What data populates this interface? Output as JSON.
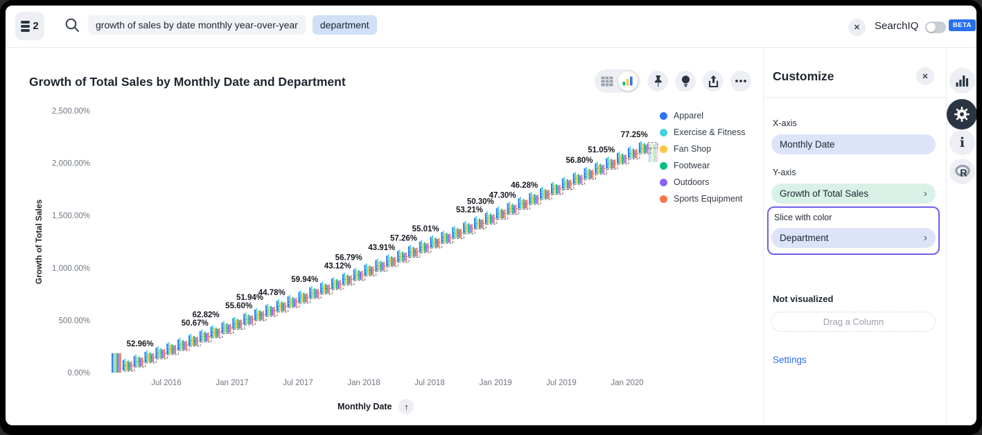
{
  "header": {
    "datasource_count": "2",
    "search": {
      "query_token": "growth of sales by date monthly year-over-year",
      "column_token": "department"
    },
    "searchiq_label": "SearchIQ",
    "beta_label": "BETA"
  },
  "chart_data": {
    "type": "bar",
    "title": "Growth of Total Sales by Monthly Date and Department",
    "xlabel": "Monthly Date",
    "ylabel": "Growth of Total Sales",
    "ylim": [
      0,
      2500
    ],
    "grid": false,
    "legend_position": "right",
    "y_ticks": [
      {
        "label": "2,500.00%",
        "value": 2500
      },
      {
        "label": "2,000.00%",
        "value": 2000
      },
      {
        "label": "1,500.00%",
        "value": 1500
      },
      {
        "label": "1,000.00%",
        "value": 1000
      },
      {
        "label": "500.00%",
        "value": 500
      },
      {
        "label": "0.00%",
        "value": 0
      }
    ],
    "x_ticks": [
      "Jul 2016",
      "Jan 2017",
      "Jul 2017",
      "Jan 2018",
      "Jul 2018",
      "Jan 2019",
      "Jul 2019",
      "Jan 2020"
    ],
    "legend": [
      {
        "label": "Apparel",
        "color": "#2E75F0"
      },
      {
        "label": "Exercise & Fitness",
        "color": "#45D2E2"
      },
      {
        "label": "Fan Shop",
        "color": "#FFC441"
      },
      {
        "label": "Footwear",
        "color": "#0ABF7C"
      },
      {
        "label": "Outdoors",
        "color": "#8B63F6"
      },
      {
        "label": "Sports Equipment",
        "color": "#F87449"
      }
    ],
    "clusters": 49,
    "bar_group_size": 6,
    "cumulative_range_pct": [
      0,
      2200
    ],
    "monthly_growth_labels": [
      {
        "value": "52.96%",
        "cluster_index": 3
      },
      {
        "value": "50.67%",
        "cluster_index": 8
      },
      {
        "value": "62.82%",
        "cluster_index": 9
      },
      {
        "value": "55.60%",
        "cluster_index": 12
      },
      {
        "value": "51.94%",
        "cluster_index": 13
      },
      {
        "value": "44.78%",
        "cluster_index": 15
      },
      {
        "value": "59.94%",
        "cluster_index": 18
      },
      {
        "value": "43.12%",
        "cluster_index": 21
      },
      {
        "value": "56.79%",
        "cluster_index": 22
      },
      {
        "value": "43.91%",
        "cluster_index": 25
      },
      {
        "value": "57.26%",
        "cluster_index": 27
      },
      {
        "value": "55.01%",
        "cluster_index": 29
      },
      {
        "value": "53.21%",
        "cluster_index": 33
      },
      {
        "value": "50.30%",
        "cluster_index": 34
      },
      {
        "value": "47.30%",
        "cluster_index": 36
      },
      {
        "value": "46.28%",
        "cluster_index": 38
      },
      {
        "value": "56.80%",
        "cluster_index": 43
      },
      {
        "value": "51.05%",
        "cluster_index": 45
      },
      {
        "value": "77.25%",
        "cluster_index": 48
      }
    ]
  },
  "customize": {
    "title": "Customize",
    "x_axis": {
      "label": "X-axis",
      "value": "Monthly Date"
    },
    "y_axis": {
      "label": "Y-axis",
      "value": "Growth of Total Sales"
    },
    "slice": {
      "label": "Slice with color",
      "value": "Department"
    },
    "not_visualized": {
      "label": "Not visualized",
      "placeholder": "Drag a Column"
    },
    "settings_label": "Settings"
  },
  "icons": {
    "datasource-icon": "database-stack",
    "search-icon": "magnifier",
    "clear-search-icon": "x-in-circle",
    "table-view-icon": "table-grid",
    "chart-view-icon": "colored-bar-chart",
    "pin-icon": "pushpin",
    "insights-icon": "lightbulb",
    "share-icon": "box-arrow-up",
    "more-icon": "ellipsis",
    "close-icon": "x",
    "chevron-right-icon": "›",
    "sort-ascending-icon": "↑",
    "rail-chart-icon": "bar-chart",
    "rail-settings-icon": "gear",
    "rail-info-icon": "i",
    "rail-r-icon": "R-logo"
  },
  "colors": {
    "accent_blue": "#2770EF",
    "highlight_border": "#6C5FE8",
    "pill_periwinkle": "#DDE4FA",
    "pill_mint": "#D8F2E7",
    "token_blue": "#CFE0F7",
    "token_gray": "#F1F3F7"
  }
}
